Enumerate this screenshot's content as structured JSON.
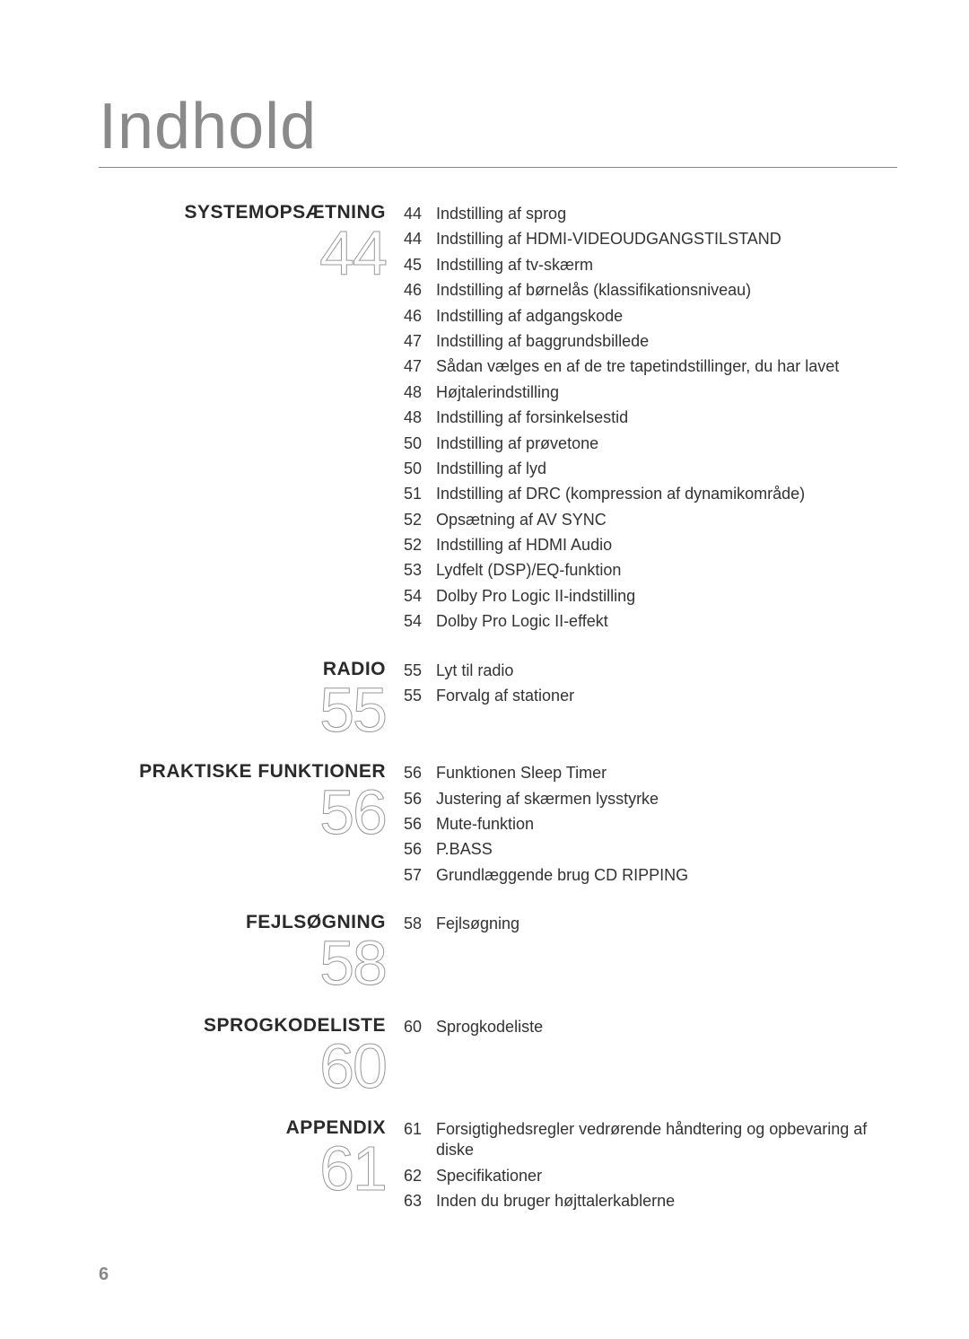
{
  "title": "Indhold",
  "page_number": "6",
  "colors": {
    "background": "#ffffff",
    "title_text": "#8a8a8a",
    "heading_text": "#2a2a2a",
    "entry_text": "#333333",
    "bignum_stroke": "#999999",
    "pagenum_text": "#888888",
    "divider": "#888888"
  },
  "typography": {
    "title_fontsize": 72,
    "heading_fontsize": 21,
    "bignum_fontsize": 70,
    "entry_fontsize": 18,
    "pagenum_fontsize": 20
  },
  "sections": [
    {
      "heading": "SYSTEMOPSÆTNING",
      "bignum": "44",
      "entries": [
        {
          "page": "44",
          "text": "Indstilling af sprog"
        },
        {
          "page": "44",
          "text": "Indstilling af HDMI-VIDEOUDGANGSTILSTAND"
        },
        {
          "page": "45",
          "text": "Indstilling af tv-skærm"
        },
        {
          "page": "46",
          "text": "Indstilling af børnelås (klassifikationsniveau)"
        },
        {
          "page": "46",
          "text": "Indstilling af adgangskode"
        },
        {
          "page": "47",
          "text": "Indstilling af baggrundsbillede"
        },
        {
          "page": "47",
          "text": "Sådan vælges en af de tre tapetindstillinger, du har lavet"
        },
        {
          "page": "48",
          "text": "Højtalerindstilling"
        },
        {
          "page": "48",
          "text": "Indstilling af forsinkelsestid"
        },
        {
          "page": "50",
          "text": "Indstilling af prøvetone"
        },
        {
          "page": "50",
          "text": "Indstilling af lyd"
        },
        {
          "page": "51",
          "text": "Indstilling af DRC (kompression af dynamikområde)"
        },
        {
          "page": "52",
          "text": "Opsætning af AV SYNC"
        },
        {
          "page": "52",
          "text": "Indstilling af HDMI Audio"
        },
        {
          "page": "53",
          "text": "Lydfelt (DSP)/EQ-funktion"
        },
        {
          "page": "54",
          "text": "Dolby Pro Logic II-indstilling"
        },
        {
          "page": "54",
          "text": "Dolby Pro Logic II-effekt"
        }
      ]
    },
    {
      "heading": "RADIO",
      "bignum": "55",
      "entries": [
        {
          "page": "55",
          "text": "Lyt til radio"
        },
        {
          "page": "55",
          "text": "Forvalg af stationer"
        }
      ]
    },
    {
      "heading": "PRAKTISKE FUNKTIONER",
      "bignum": "56",
      "entries": [
        {
          "page": "56",
          "text": "Funktionen Sleep Timer"
        },
        {
          "page": "56",
          "text": "Justering af skærmen lysstyrke"
        },
        {
          "page": "56",
          "text": "Mute-funktion"
        },
        {
          "page": "56",
          "text": "P.BASS"
        },
        {
          "page": "57",
          "text": "Grundlæggende brug CD RIPPING"
        }
      ]
    },
    {
      "heading": "FEJLSØGNING",
      "bignum": "58",
      "entries": [
        {
          "page": "58",
          "text": "Fejlsøgning"
        }
      ]
    },
    {
      "heading": "SPROGKODELISTE",
      "bignum": "60",
      "entries": [
        {
          "page": "60",
          "text": "Sprogkodeliste"
        }
      ]
    },
    {
      "heading": "APPENDIX",
      "bignum": "61",
      "entries": [
        {
          "page": "61",
          "text": "Forsigtighedsregler vedrørende håndtering og opbevaring af diske"
        },
        {
          "page": "62",
          "text": "Specifikationer"
        },
        {
          "page": "63",
          "text": "Inden du bruger højttalerkablerne"
        }
      ]
    }
  ]
}
